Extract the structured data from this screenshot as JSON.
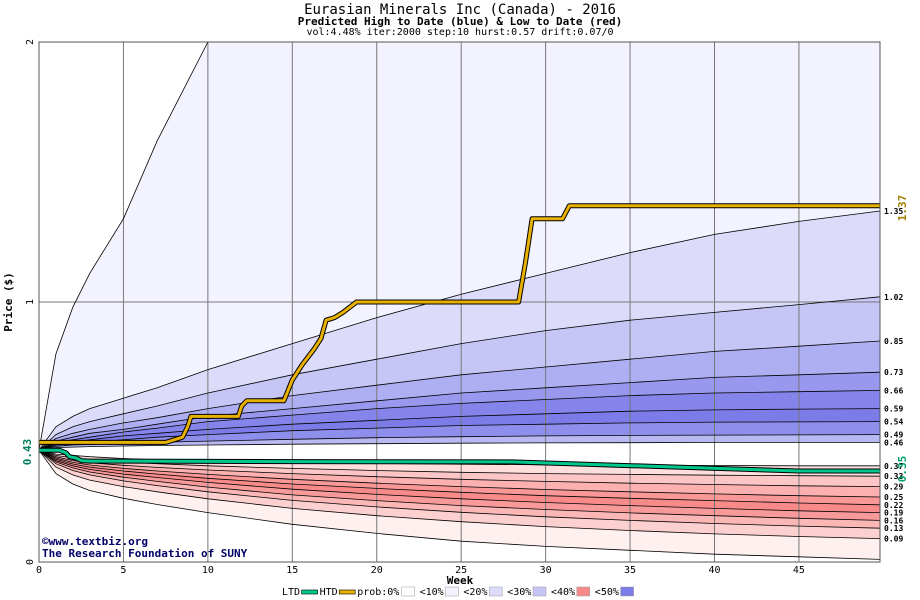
{
  "chart_data": {
    "type": "area",
    "title": "Eurasian Minerals Inc (Canada) - 2016",
    "subtitle": "Predicted High to Date (blue) &  Low to Date (red)",
    "params": "vol:4.48% iter:2000 step:10 hurst:0.57 drift:0.07/0",
    "xlabel": "Week",
    "ylabel": "Price ($)",
    "xlim": [
      0,
      49.8
    ],
    "ylim": [
      0,
      2
    ],
    "x_ticks": [
      0,
      5,
      10,
      15,
      20,
      25,
      30,
      35,
      40,
      45
    ],
    "y_ticks": [
      0,
      1,
      2
    ],
    "grid": true,
    "start_price": 0.43,
    "start_price_label": "0.43",
    "htd_end_label": "1.37",
    "ltd_end_label": "0.35",
    "x": [
      0,
      1,
      2,
      3,
      5,
      7,
      10,
      15,
      20,
      25,
      30,
      35,
      40,
      45,
      49.8
    ],
    "quantile_curves": [
      {
        "end_label": "",
        "values": [
          0.43,
          0.8,
          0.98,
          1.11,
          1.32,
          1.62,
          2.0,
          2.0,
          2.0,
          2.0,
          2.0,
          2.0,
          2.0,
          2.0,
          2.0
        ]
      },
      {
        "end_label": "1.35",
        "values": [
          0.43,
          0.52,
          0.56,
          0.59,
          0.63,
          0.67,
          0.74,
          0.84,
          0.94,
          1.03,
          1.11,
          1.19,
          1.26,
          1.31,
          1.35
        ]
      },
      {
        "end_label": "1.02",
        "values": [
          0.43,
          0.49,
          0.52,
          0.54,
          0.57,
          0.6,
          0.65,
          0.72,
          0.78,
          0.84,
          0.89,
          0.93,
          0.96,
          0.99,
          1.02
        ]
      },
      {
        "end_label": "0.85",
        "values": [
          0.43,
          0.475,
          0.495,
          0.51,
          0.535,
          0.555,
          0.59,
          0.64,
          0.68,
          0.72,
          0.75,
          0.78,
          0.81,
          0.83,
          0.85
        ]
      },
      {
        "end_label": "0.73",
        "values": [
          0.43,
          0.465,
          0.48,
          0.495,
          0.51,
          0.53,
          0.56,
          0.59,
          0.62,
          0.65,
          0.67,
          0.69,
          0.71,
          0.72,
          0.73
        ]
      },
      {
        "end_label": "0.66",
        "values": [
          0.43,
          0.46,
          0.47,
          0.48,
          0.5,
          0.515,
          0.54,
          0.565,
          0.59,
          0.61,
          0.625,
          0.64,
          0.65,
          0.655,
          0.66
        ]
      },
      {
        "end_label": "0.59",
        "values": [
          0.43,
          0.455,
          0.46,
          0.47,
          0.485,
          0.495,
          0.51,
          0.53,
          0.545,
          0.56,
          0.57,
          0.58,
          0.585,
          0.588,
          0.59
        ]
      },
      {
        "end_label": "0.54",
        "values": [
          0.43,
          0.45,
          0.455,
          0.46,
          0.47,
          0.48,
          0.49,
          0.505,
          0.515,
          0.525,
          0.53,
          0.535,
          0.538,
          0.539,
          0.54
        ]
      },
      {
        "end_label": "0.49",
        "values": [
          0.43,
          0.445,
          0.45,
          0.452,
          0.456,
          0.46,
          0.465,
          0.472,
          0.478,
          0.482,
          0.485,
          0.487,
          0.488,
          0.489,
          0.49
        ]
      },
      {
        "end_label": "0.46",
        "values": [
          0.43,
          0.44,
          0.442,
          0.444,
          0.446,
          0.448,
          0.45,
          0.453,
          0.455,
          0.457,
          0.458,
          0.459,
          0.46,
          0.46,
          0.46
        ]
      },
      {
        "end_label": "0.37",
        "values": [
          0.43,
          0.415,
          0.41,
          0.405,
          0.398,
          0.393,
          0.388,
          0.383,
          0.379,
          0.376,
          0.374,
          0.372,
          0.371,
          0.37,
          0.37
        ]
      },
      {
        "end_label": "0.33",
        "values": [
          0.43,
          0.41,
          0.4,
          0.394,
          0.385,
          0.378,
          0.37,
          0.36,
          0.352,
          0.345,
          0.34,
          0.337,
          0.334,
          0.332,
          0.33
        ]
      },
      {
        "end_label": "0.29",
        "values": [
          0.43,
          0.405,
          0.39,
          0.382,
          0.372,
          0.364,
          0.354,
          0.34,
          0.328,
          0.318,
          0.31,
          0.303,
          0.298,
          0.293,
          0.29
        ]
      },
      {
        "end_label": "0.25",
        "values": [
          0.43,
          0.4,
          0.383,
          0.373,
          0.36,
          0.35,
          0.337,
          0.318,
          0.303,
          0.29,
          0.279,
          0.27,
          0.262,
          0.255,
          0.25
        ]
      },
      {
        "end_label": "0.22",
        "values": [
          0.43,
          0.395,
          0.377,
          0.365,
          0.35,
          0.338,
          0.322,
          0.3,
          0.283,
          0.268,
          0.255,
          0.245,
          0.236,
          0.227,
          0.22
        ]
      },
      {
        "end_label": "0.19",
        "values": [
          0.43,
          0.39,
          0.37,
          0.356,
          0.338,
          0.325,
          0.306,
          0.28,
          0.26,
          0.243,
          0.229,
          0.217,
          0.206,
          0.197,
          0.19
        ]
      },
      {
        "end_label": "0.16",
        "values": [
          0.43,
          0.385,
          0.362,
          0.346,
          0.326,
          0.31,
          0.288,
          0.258,
          0.236,
          0.217,
          0.202,
          0.189,
          0.178,
          0.168,
          0.16
        ]
      },
      {
        "end_label": "0.13",
        "values": [
          0.43,
          0.378,
          0.352,
          0.335,
          0.312,
          0.294,
          0.27,
          0.237,
          0.212,
          0.191,
          0.174,
          0.16,
          0.148,
          0.138,
          0.13
        ]
      },
      {
        "end_label": "0.09",
        "values": [
          0.43,
          0.365,
          0.335,
          0.315,
          0.29,
          0.27,
          0.243,
          0.206,
          0.178,
          0.155,
          0.136,
          0.121,
          0.108,
          0.098,
          0.09
        ]
      },
      {
        "end_label": "",
        "values": [
          0.43,
          0.34,
          0.3,
          0.275,
          0.245,
          0.221,
          0.19,
          0.145,
          0.11,
          0.08,
          0.06,
          0.045,
          0.03,
          0.02,
          0.01
        ]
      }
    ],
    "band_fills": [
      "#f3f3ff",
      "#dcdcfa",
      "#c6c6f6",
      "#aeaef2",
      "#9898ee",
      "#8484ea",
      "#7c7ce8",
      "#8e8eec",
      "#b8b8f3",
      "#ffffff",
      "#ffdede",
      "#fdc6c6",
      "#fcb0b0",
      "#fa9898",
      "#f88a8a",
      "#f99a9a",
      "#fbb6b6",
      "#fdd0d0",
      "#fff0f0"
    ],
    "series": [
      {
        "name": "HTD",
        "color": "#e8b000",
        "points": [
          [
            0,
            0.46
          ],
          [
            7.5,
            0.46
          ],
          [
            8,
            0.47
          ],
          [
            8.5,
            0.48
          ],
          [
            8.8,
            0.52
          ],
          [
            9,
            0.56
          ],
          [
            11.8,
            0.56
          ],
          [
            12,
            0.6
          ],
          [
            12.3,
            0.62
          ],
          [
            14.5,
            0.62
          ],
          [
            15,
            0.7
          ],
          [
            15.6,
            0.76
          ],
          [
            16.3,
            0.82
          ],
          [
            16.7,
            0.86
          ],
          [
            17,
            0.93
          ],
          [
            17.5,
            0.94
          ],
          [
            18,
            0.96
          ],
          [
            18.8,
            1.0
          ],
          [
            28.4,
            1.0
          ],
          [
            28.8,
            1.15
          ],
          [
            29.2,
            1.32
          ],
          [
            29.5,
            1.32
          ],
          [
            31,
            1.32
          ],
          [
            31.4,
            1.37
          ],
          [
            49.8,
            1.37
          ]
        ]
      },
      {
        "name": "LTD",
        "color": "#00c88c",
        "points": [
          [
            0,
            0.43
          ],
          [
            0.8,
            0.43
          ],
          [
            1.2,
            0.43
          ],
          [
            1.6,
            0.42
          ],
          [
            1.8,
            0.405
          ],
          [
            2.2,
            0.4
          ],
          [
            2.5,
            0.39
          ],
          [
            3,
            0.388
          ],
          [
            5,
            0.388
          ],
          [
            15,
            0.386
          ],
          [
            28,
            0.385
          ],
          [
            45,
            0.35
          ],
          [
            49.8,
            0.35
          ]
        ]
      }
    ],
    "legend": {
      "placement": "bottom",
      "items": [
        {
          "label": "LTD",
          "color": "#00c88c"
        },
        {
          "label": "HTD",
          "color": "#e8b000"
        },
        {
          "label": "prob:0%",
          "color": "#ffffff"
        },
        {
          "label": "<10%",
          "color": "#f3f3ff"
        },
        {
          "label": "<20%",
          "color": "#dcdcfa"
        },
        {
          "label": "<30%",
          "color": "#c6c6f6"
        },
        {
          "label": "<40%",
          "color": "#f88a8a"
        },
        {
          "label": "<50%",
          "color": "#7c7ce8"
        }
      ]
    }
  },
  "credits": {
    "line1": "©www.textbiz.org",
    "line2": "The Research Foundation of SUNY"
  }
}
